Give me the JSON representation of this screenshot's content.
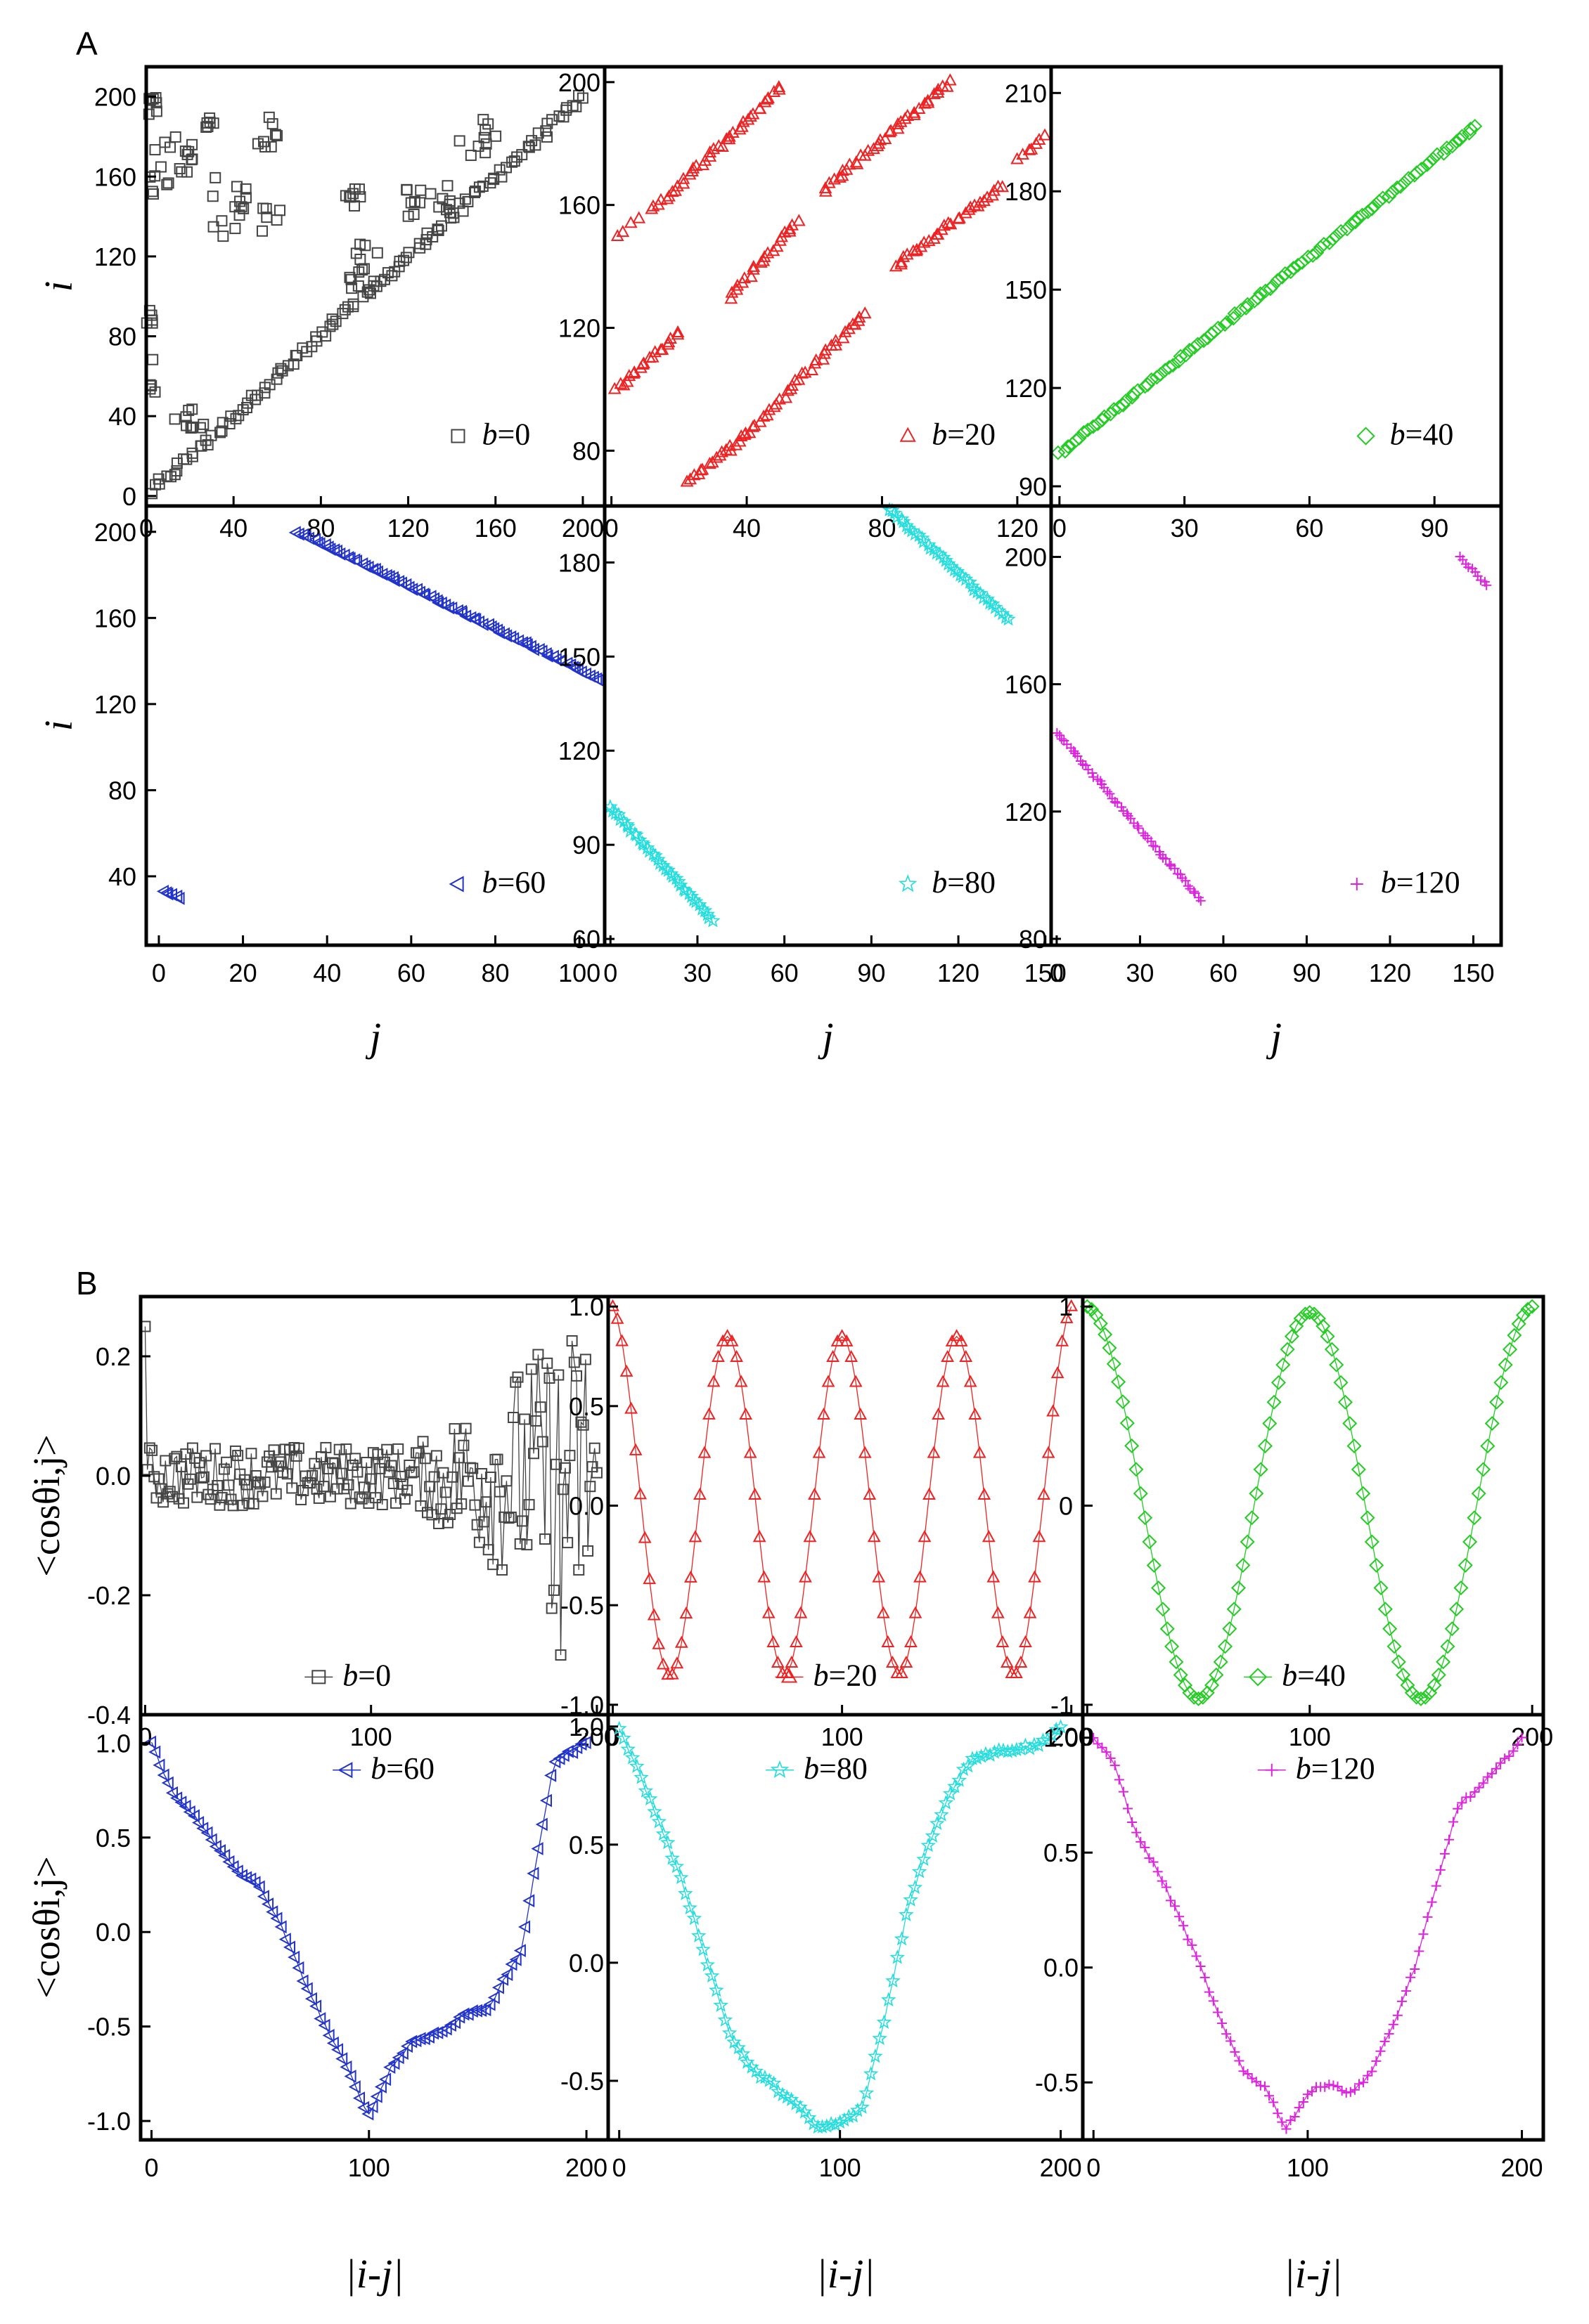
{
  "panel_labels": {
    "A": "A",
    "B": "B"
  },
  "chart_data": [
    {
      "type": "scatter",
      "panel": "A",
      "subplot": "A-b0",
      "color": "#444444",
      "marker": "square",
      "legend": {
        "prefix": "b",
        "eq": "=0"
      },
      "xlim": [
        0,
        210
      ],
      "ylim": [
        -5,
        215
      ],
      "xticks": [
        0,
        40,
        80,
        120,
        160,
        200
      ],
      "yticks": [
        0,
        40,
        80,
        120,
        160,
        200
      ],
      "ylabel": "i",
      "xlabel": "",
      "segments": [
        {
          "x0": 2,
          "y0": 2,
          "x1": 200,
          "y1": 200,
          "n": 120,
          "jitter": 4
        }
      ],
      "clusters": [
        {
          "x": 3,
          "y": 195,
          "n": 8,
          "dx": 6,
          "dy": 10
        },
        {
          "x": 7,
          "y": 165,
          "n": 10,
          "dx": 12,
          "dy": 30
        },
        {
          "x": 18,
          "y": 170,
          "n": 10,
          "dx": 10,
          "dy": 20
        },
        {
          "x": 28,
          "y": 185,
          "n": 6,
          "dx": 6,
          "dy": 10
        },
        {
          "x": 38,
          "y": 145,
          "n": 14,
          "dx": 16,
          "dy": 30
        },
        {
          "x": 55,
          "y": 182,
          "n": 8,
          "dx": 10,
          "dy": 16
        },
        {
          "x": 2,
          "y": 90,
          "n": 6,
          "dx": 5,
          "dy": 8
        },
        {
          "x": 3,
          "y": 60,
          "n": 5,
          "dx": 3,
          "dy": 20
        },
        {
          "x": 58,
          "y": 140,
          "n": 6,
          "dx": 10,
          "dy": 20
        },
        {
          "x": 100,
          "y": 115,
          "n": 14,
          "dx": 14,
          "dy": 24
        },
        {
          "x": 95,
          "y": 150,
          "n": 8,
          "dx": 10,
          "dy": 10
        },
        {
          "x": 128,
          "y": 148,
          "n": 16,
          "dx": 24,
          "dy": 16
        },
        {
          "x": 150,
          "y": 180,
          "n": 10,
          "dx": 22,
          "dy": 20
        },
        {
          "x": 20,
          "y": 40,
          "n": 10,
          "dx": 14,
          "dy": 12
        }
      ]
    },
    {
      "type": "scatter",
      "panel": "A",
      "subplot": "A-b20",
      "color": "#ee2222",
      "marker": "triangle-up",
      "legend": {
        "prefix": "b",
        "eq": "=20"
      },
      "xlim": [
        -2,
        130
      ],
      "ylim": [
        62,
        205
      ],
      "xticks": [
        0,
        40,
        80,
        120
      ],
      "yticks": [
        80,
        120,
        160,
        200
      ],
      "ylabel": "",
      "xlabel": "",
      "segments": [
        {
          "x0": 2,
          "y0": 150,
          "x1": 8,
          "y1": 155,
          "n": 4,
          "jitter": 1.5
        },
        {
          "x0": 12,
          "y0": 158,
          "x1": 50,
          "y1": 198,
          "n": 40,
          "jitter": 1.5
        },
        {
          "x0": 1,
          "y0": 100,
          "x1": 20,
          "y1": 118,
          "n": 20,
          "jitter": 1.5
        },
        {
          "x0": 35,
          "y0": 130,
          "x1": 55,
          "y1": 155,
          "n": 22,
          "jitter": 1.5
        },
        {
          "x0": 22,
          "y0": 70,
          "x1": 40,
          "y1": 85,
          "n": 18,
          "jitter": 1.5
        },
        {
          "x0": 40,
          "y0": 85,
          "x1": 75,
          "y1": 125,
          "n": 36,
          "jitter": 1.5
        },
        {
          "x0": 63,
          "y0": 165,
          "x1": 100,
          "y1": 200,
          "n": 38,
          "jitter": 1.5
        },
        {
          "x0": 84,
          "y0": 140,
          "x1": 115,
          "y1": 166,
          "n": 32,
          "jitter": 1.5
        },
        {
          "x0": 120,
          "y0": 175,
          "x1": 130,
          "y1": 183,
          "n": 8,
          "jitter": 1.5
        }
      ]
    },
    {
      "type": "scatter",
      "panel": "A",
      "subplot": "A-b40",
      "color": "#22cc22",
      "marker": "diamond",
      "legend": {
        "prefix": "b",
        "eq": "=40"
      },
      "xlim": [
        -2,
        106
      ],
      "ylim": [
        84,
        218
      ],
      "xticks": [
        0,
        30,
        60,
        90
      ],
      "yticks": [
        90,
        120,
        150,
        180,
        210
      ],
      "ylabel": "",
      "xlabel": "",
      "segments": [
        {
          "x0": 0,
          "y0": 100,
          "x1": 100,
          "y1": 200,
          "n": 100,
          "jitter": 0.8
        }
      ]
    },
    {
      "type": "scatter",
      "panel": "A",
      "subplot": "A-b60",
      "color": "#2233cc",
      "marker": "triangle-left",
      "legend": {
        "prefix": "b",
        "eq": "=60"
      },
      "xlim": [
        -3,
        106
      ],
      "ylim": [
        8,
        212
      ],
      "xticks": [
        0,
        20,
        40,
        60,
        80,
        100
      ],
      "yticks": [
        40,
        80,
        120,
        160,
        200
      ],
      "ylabel": "i",
      "xlabel": "j",
      "segments": [
        {
          "x0": 1,
          "y0": 33,
          "x1": 5,
          "y1": 30,
          "n": 6,
          "jitter": 0.6
        },
        {
          "x0": 33,
          "y0": 200,
          "x1": 105,
          "y1": 131,
          "n": 90,
          "jitter": 0.8
        }
      ]
    },
    {
      "type": "scatter",
      "panel": "A",
      "subplot": "A-b80",
      "color": "#22dddd",
      "marker": "star",
      "legend": {
        "prefix": "b",
        "eq": "=80"
      },
      "xlim": [
        -2,
        152
      ],
      "ylim": [
        58,
        198
      ],
      "xticks": [
        0,
        30,
        60,
        90,
        120,
        150
      ],
      "yticks": [
        60,
        90,
        120,
        150,
        180
      ],
      "ylabel": "",
      "xlabel": "j",
      "segments": [
        {
          "x0": 0,
          "y0": 102,
          "x1": 35,
          "y1": 66,
          "n": 40,
          "jitter": 0.8
        },
        {
          "x0": 95,
          "y0": 198,
          "x1": 137,
          "y1": 162,
          "n": 42,
          "jitter": 0.8
        }
      ]
    },
    {
      "type": "scatter",
      "panel": "A",
      "subplot": "A-b120",
      "color": "#dd22dd",
      "marker": "plus",
      "legend": {
        "prefix": "b",
        "eq": "=120"
      },
      "xlim": [
        -2,
        160
      ],
      "ylim": [
        78,
        216
      ],
      "xticks": [
        0,
        30,
        60,
        90,
        120,
        150
      ],
      "yticks": [
        80,
        120,
        160,
        200
      ],
      "ylabel": "",
      "xlabel": "j",
      "segments": [
        {
          "x0": 0,
          "y0": 145,
          "x1": 52,
          "y1": 92,
          "n": 55,
          "jitter": 0.8
        },
        {
          "x0": 145,
          "y0": 200,
          "x1": 155,
          "y1": 191,
          "n": 10,
          "jitter": 0.6
        }
      ]
    },
    {
      "type": "line",
      "panel": "B",
      "subplot": "B-b0",
      "color": "#444444",
      "marker": "square",
      "legend": {
        "prefix": "b",
        "eq": "=0"
      },
      "xlim": [
        -2,
        205
      ],
      "ylim": [
        -0.4,
        0.3
      ],
      "xticks": [
        0,
        100,
        200
      ],
      "yticks": [
        -0.4,
        -0.2,
        0.0,
        0.2
      ],
      "ytick_labels": [
        "-0.4",
        "-0.2",
        "0.0",
        "0.2"
      ],
      "ylabel": "<cosθi,j>",
      "xlabel": "",
      "model": {
        "kind": "noise",
        "amp": 0.05,
        "growth": 0.003,
        "dips": [
          [
            130,
            -0.08
          ],
          [
            184,
            -0.3
          ],
          [
            190,
            0.19
          ],
          [
            0,
            0.25
          ]
        ]
      }
    },
    {
      "type": "line",
      "panel": "B",
      "subplot": "B-b20",
      "color": "#ee2222",
      "marker": "triangle-up",
      "legend": {
        "prefix": "b",
        "eq": "=20"
      },
      "xlim": [
        -2,
        205
      ],
      "ylim": [
        -1.05,
        1.05
      ],
      "xticks": [
        0,
        100,
        200
      ],
      "yticks": [
        -1.0,
        -0.5,
        0.0,
        0.5,
        1.0
      ],
      "ytick_labels": [
        "-1.0",
        "-0.5",
        "0.0",
        "0.5",
        "1.0"
      ],
      "ylabel": "",
      "xlabel": "",
      "model": {
        "kind": "cos",
        "period": 50,
        "amp": 0.85,
        "start": 1.0
      }
    },
    {
      "type": "line",
      "panel": "B",
      "subplot": "B-b40",
      "color": "#22cc22",
      "marker": "diamond",
      "legend": {
        "prefix": "b",
        "eq": "=40"
      },
      "xlim": [
        -2,
        205
      ],
      "ylim": [
        -1.05,
        1.05
      ],
      "xticks": [
        0,
        100,
        200
      ],
      "yticks": [
        -1,
        0,
        1
      ],
      "ytick_labels": [
        "-1",
        "0",
        "1"
      ],
      "ylabel": "",
      "xlabel": "",
      "model": {
        "kind": "cos",
        "period": 100,
        "amp": 0.97,
        "start": 1.0
      }
    },
    {
      "type": "line",
      "panel": "B",
      "subplot": "B-b60",
      "color": "#2233cc",
      "marker": "triangle-left",
      "legend": {
        "prefix": "b",
        "eq": "=60"
      },
      "xlim": [
        -5,
        210
      ],
      "ylim": [
        -1.1,
        1.15
      ],
      "xticks": [
        0,
        100,
        200
      ],
      "yticks": [
        -1.0,
        -0.5,
        0.0,
        0.5,
        1.0
      ],
      "ytick_labels": [
        "-1.0",
        "-0.5",
        "0.0",
        "0.5",
        "1.0"
      ],
      "ylabel": "<cosθi,j>",
      "xlabel": "|i-j|",
      "points": [
        [
          0,
          1.0
        ],
        [
          10,
          0.73
        ],
        [
          20,
          0.62
        ],
        [
          30,
          0.45
        ],
        [
          40,
          0.32
        ],
        [
          50,
          0.24
        ],
        [
          60,
          0.02
        ],
        [
          70,
          -0.25
        ],
        [
          80,
          -0.5
        ],
        [
          90,
          -0.72
        ],
        [
          100,
          -0.97
        ],
        [
          110,
          -0.72
        ],
        [
          120,
          -0.58
        ],
        [
          135,
          -0.52
        ],
        [
          145,
          -0.43
        ],
        [
          155,
          -0.4
        ],
        [
          170,
          -0.1
        ],
        [
          185,
          0.9
        ],
        [
          200,
          1.0
        ]
      ]
    },
    {
      "type": "line",
      "panel": "B",
      "subplot": "B-b80",
      "color": "#22dddd",
      "marker": "star",
      "legend": {
        "prefix": "b",
        "eq": "=80"
      },
      "xlim": [
        -5,
        210
      ],
      "ylim": [
        -0.75,
        1.05
      ],
      "xticks": [
        0,
        100,
        200
      ],
      "yticks": [
        -0.5,
        0.0,
        0.5,
        1.0
      ],
      "ytick_labels": [
        "-0.5",
        "0.0",
        "0.5",
        "1.0"
      ],
      "ylabel": "",
      "xlabel": "|i-j|",
      "points": [
        [
          0,
          1.0
        ],
        [
          10,
          0.78
        ],
        [
          20,
          0.55
        ],
        [
          30,
          0.3
        ],
        [
          40,
          0.0
        ],
        [
          50,
          -0.3
        ],
        [
          60,
          -0.45
        ],
        [
          70,
          -0.52
        ],
        [
          80,
          -0.6
        ],
        [
          90,
          -0.7
        ],
        [
          100,
          -0.68
        ],
        [
          110,
          -0.62
        ],
        [
          120,
          -0.25
        ],
        [
          130,
          0.2
        ],
        [
          140,
          0.5
        ],
        [
          150,
          0.72
        ],
        [
          160,
          0.87
        ],
        [
          175,
          0.9
        ],
        [
          190,
          0.92
        ],
        [
          200,
          1.0
        ]
      ]
    },
    {
      "type": "line",
      "panel": "B",
      "subplot": "B-b120",
      "color": "#dd22dd",
      "marker": "plus",
      "legend": {
        "prefix": "b",
        "eq": "=120"
      },
      "xlim": [
        -5,
        210
      ],
      "ylim": [
        -0.75,
        1.1
      ],
      "xticks": [
        0,
        100,
        200
      ],
      "yticks": [
        -0.5,
        0.0,
        0.5,
        1.0
      ],
      "ytick_labels": [
        "-0.5",
        "0.0",
        "0.5",
        "1.0"
      ],
      "ylabel": "",
      "xlabel": "|i-j|",
      "points": [
        [
          0,
          1.0
        ],
        [
          10,
          0.88
        ],
        [
          20,
          0.58
        ],
        [
          30,
          0.42
        ],
        [
          40,
          0.22
        ],
        [
          50,
          0.0
        ],
        [
          60,
          -0.25
        ],
        [
          70,
          -0.45
        ],
        [
          80,
          -0.52
        ],
        [
          90,
          -0.7
        ],
        [
          100,
          -0.55
        ],
        [
          110,
          -0.5
        ],
        [
          120,
          -0.55
        ],
        [
          130,
          -0.45
        ],
        [
          140,
          -0.25
        ],
        [
          150,
          0.0
        ],
        [
          160,
          0.35
        ],
        [
          170,
          0.7
        ],
        [
          180,
          0.78
        ],
        [
          190,
          0.88
        ],
        [
          200,
          1.0
        ]
      ]
    }
  ]
}
